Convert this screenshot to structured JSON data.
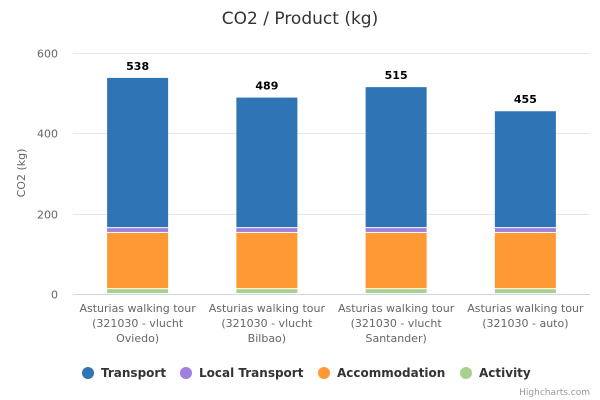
{
  "chart_data": {
    "type": "bar",
    "stacked": true,
    "title": "CO2 / Product (kg)",
    "xlabel": "",
    "ylabel": "CO2 (kg)",
    "ylim": [
      0,
      600
    ],
    "yticks": [
      0,
      200,
      400,
      600
    ],
    "grid": true,
    "legend_position": "bottom",
    "categories": [
      [
        "Asturias walking tour",
        "(321030 - vlucht",
        "Oviedo)"
      ],
      [
        "Asturias walking tour",
        "(321030 - vlucht",
        "Bilbao)"
      ],
      [
        "Asturias walking tour",
        "(321030 - vlucht",
        "Santander)"
      ],
      [
        "Asturias walking tour",
        "(321030 - auto)"
      ]
    ],
    "totals": [
      538,
      489,
      515,
      455
    ],
    "series": [
      {
        "name": "Activity",
        "color": "#a9d18e",
        "values": [
          12,
          12,
          12,
          12
        ]
      },
      {
        "name": "Accommodation",
        "color": "#ff9933",
        "values": [
          140,
          140,
          140,
          140
        ]
      },
      {
        "name": "Local Transport",
        "color": "#9f7fe0",
        "values": [
          12,
          12,
          12,
          12
        ]
      },
      {
        "name": "Transport",
        "color": "#2f74b5",
        "values": [
          374,
          325,
          351,
          291
        ]
      }
    ],
    "legend_order": [
      "Transport",
      "Local Transport",
      "Accommodation",
      "Activity"
    ]
  },
  "credits": "Highcharts.com"
}
